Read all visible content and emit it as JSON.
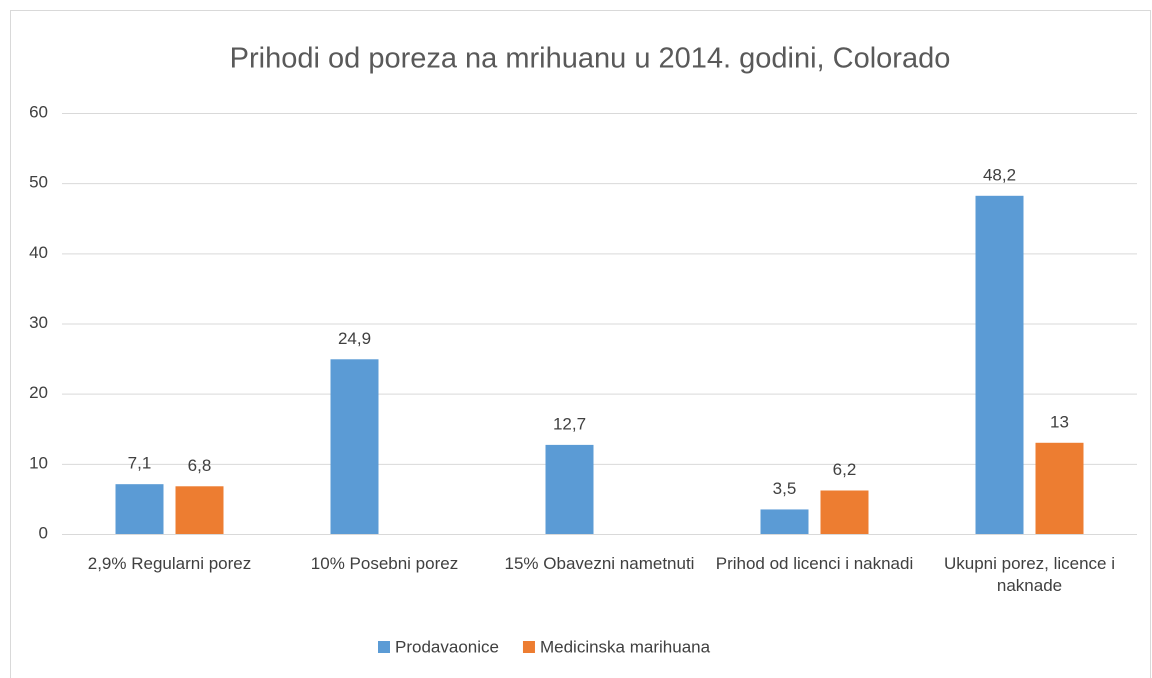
{
  "chart_data": {
    "type": "bar",
    "title": "Prihodi od poreza na mrihuanu u 2014. godini, Colorado",
    "categories": [
      "2,9% Regularni porez",
      "10% Posebni porez",
      "15% Obavezni nametnuti",
      "Prihod od licenci i naknadi",
      "Ukupni porez, licence i naknade"
    ],
    "series": [
      {
        "name": "Prodavaonice",
        "color": "#5b9bd5",
        "values": [
          7.1,
          24.9,
          12.7,
          3.5,
          48.2
        ],
        "value_labels": [
          "7,1",
          "24,9",
          "12,7",
          "3,5",
          "48,2"
        ]
      },
      {
        "name": "Medicinska marihuana",
        "color": "#ed7d31",
        "values": [
          6.8,
          null,
          null,
          6.2,
          13
        ],
        "value_labels": [
          "6,8",
          null,
          null,
          "6,2",
          "13"
        ]
      }
    ],
    "ylim": [
      0,
      60
    ],
    "yticks": [
      0,
      10,
      20,
      30,
      40,
      50,
      60
    ],
    "grid": true,
    "legend": "bottom"
  }
}
